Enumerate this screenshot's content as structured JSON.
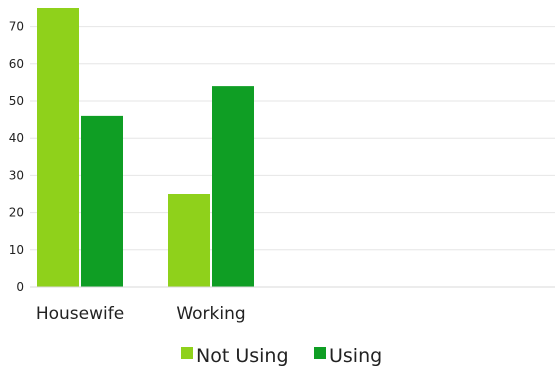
{
  "chart_data": {
    "type": "bar",
    "categories": [
      "Housewife",
      "Working"
    ],
    "series": [
      {
        "name": "Not Using",
        "values": [
          75,
          25
        ],
        "color": "#8fd11b"
      },
      {
        "name": "Using",
        "values": [
          46,
          54
        ],
        "color": "#0f9e24"
      }
    ],
    "y_ticks": [
      0,
      10,
      20,
      30,
      40,
      50,
      60,
      70
    ],
    "ylim": [
      0,
      75
    ],
    "grid": true,
    "legend_position": "bottom",
    "title": "",
    "xlabel": "",
    "ylabel": ""
  }
}
